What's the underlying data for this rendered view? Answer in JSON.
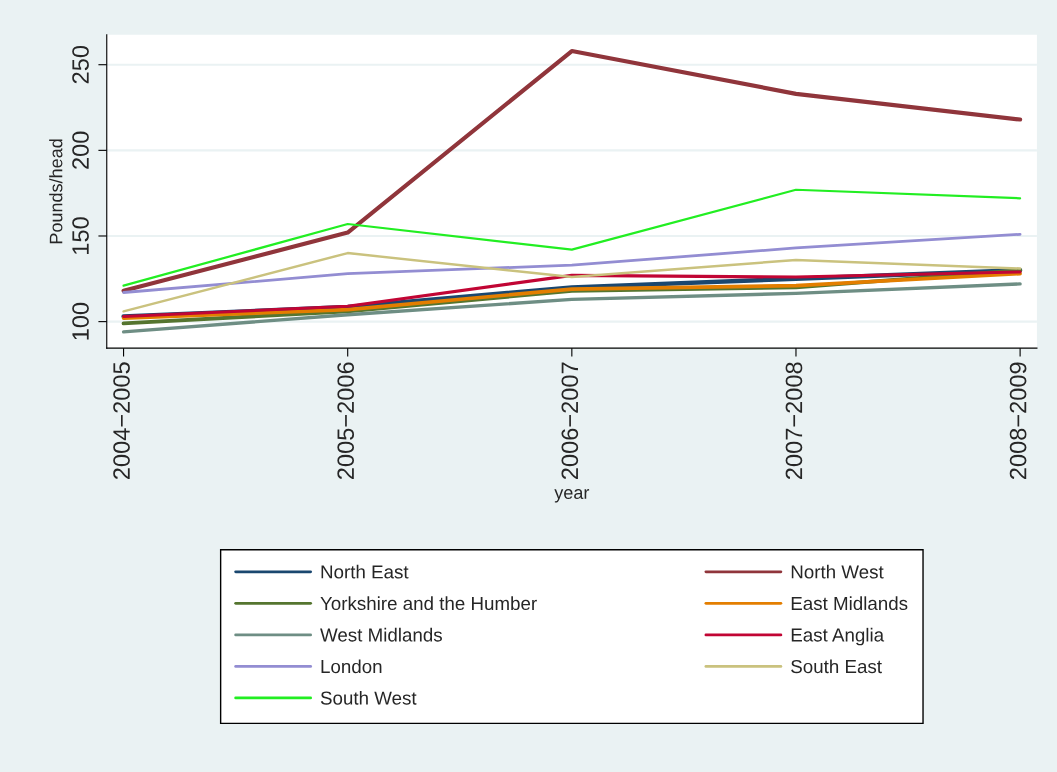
{
  "chart_data": {
    "type": "line",
    "xlabel": "year",
    "ylabel": "Pounds/head",
    "categories": [
      "2004−2005",
      "2005−2006",
      "2006−2007",
      "2007−2008",
      "2008−2009"
    ],
    "series": [
      {
        "name": "North East",
        "color": "#1a476f",
        "values": [
          103,
          108.5,
          120,
          125,
          130
        ]
      },
      {
        "name": "North West",
        "color": "#90353b",
        "values": [
          118,
          152,
          258,
          233,
          218
        ]
      },
      {
        "name": "Yorkshire and the Humber",
        "color": "#55752f",
        "values": [
          99,
          106,
          118,
          120,
          130
        ]
      },
      {
        "name": "East Midlands",
        "color": "#e37e00",
        "values": [
          102,
          107,
          119,
          121,
          128
        ]
      },
      {
        "name": "West Midlands",
        "color": "#6e8e84",
        "values": [
          94,
          104,
          113,
          116.5,
          122
        ]
      },
      {
        "name": "East Anglia",
        "color": "#c10534",
        "values": [
          103,
          109,
          127,
          126,
          129
        ]
      },
      {
        "name": "London",
        "color": "#938dd2",
        "values": [
          117,
          128,
          133,
          143,
          151
        ]
      },
      {
        "name": "South East",
        "color": "#cac27e",
        "values": [
          106,
          140,
          126,
          136,
          131
        ]
      },
      {
        "name": "South West",
        "color": "#22ee22",
        "values": [
          121,
          157,
          142,
          177,
          172
        ]
      }
    ],
    "ylim": [
      84.5,
      267.5
    ],
    "yticks": [
      100,
      150,
      200,
      250
    ],
    "grid": "y",
    "legend": "bottom"
  }
}
